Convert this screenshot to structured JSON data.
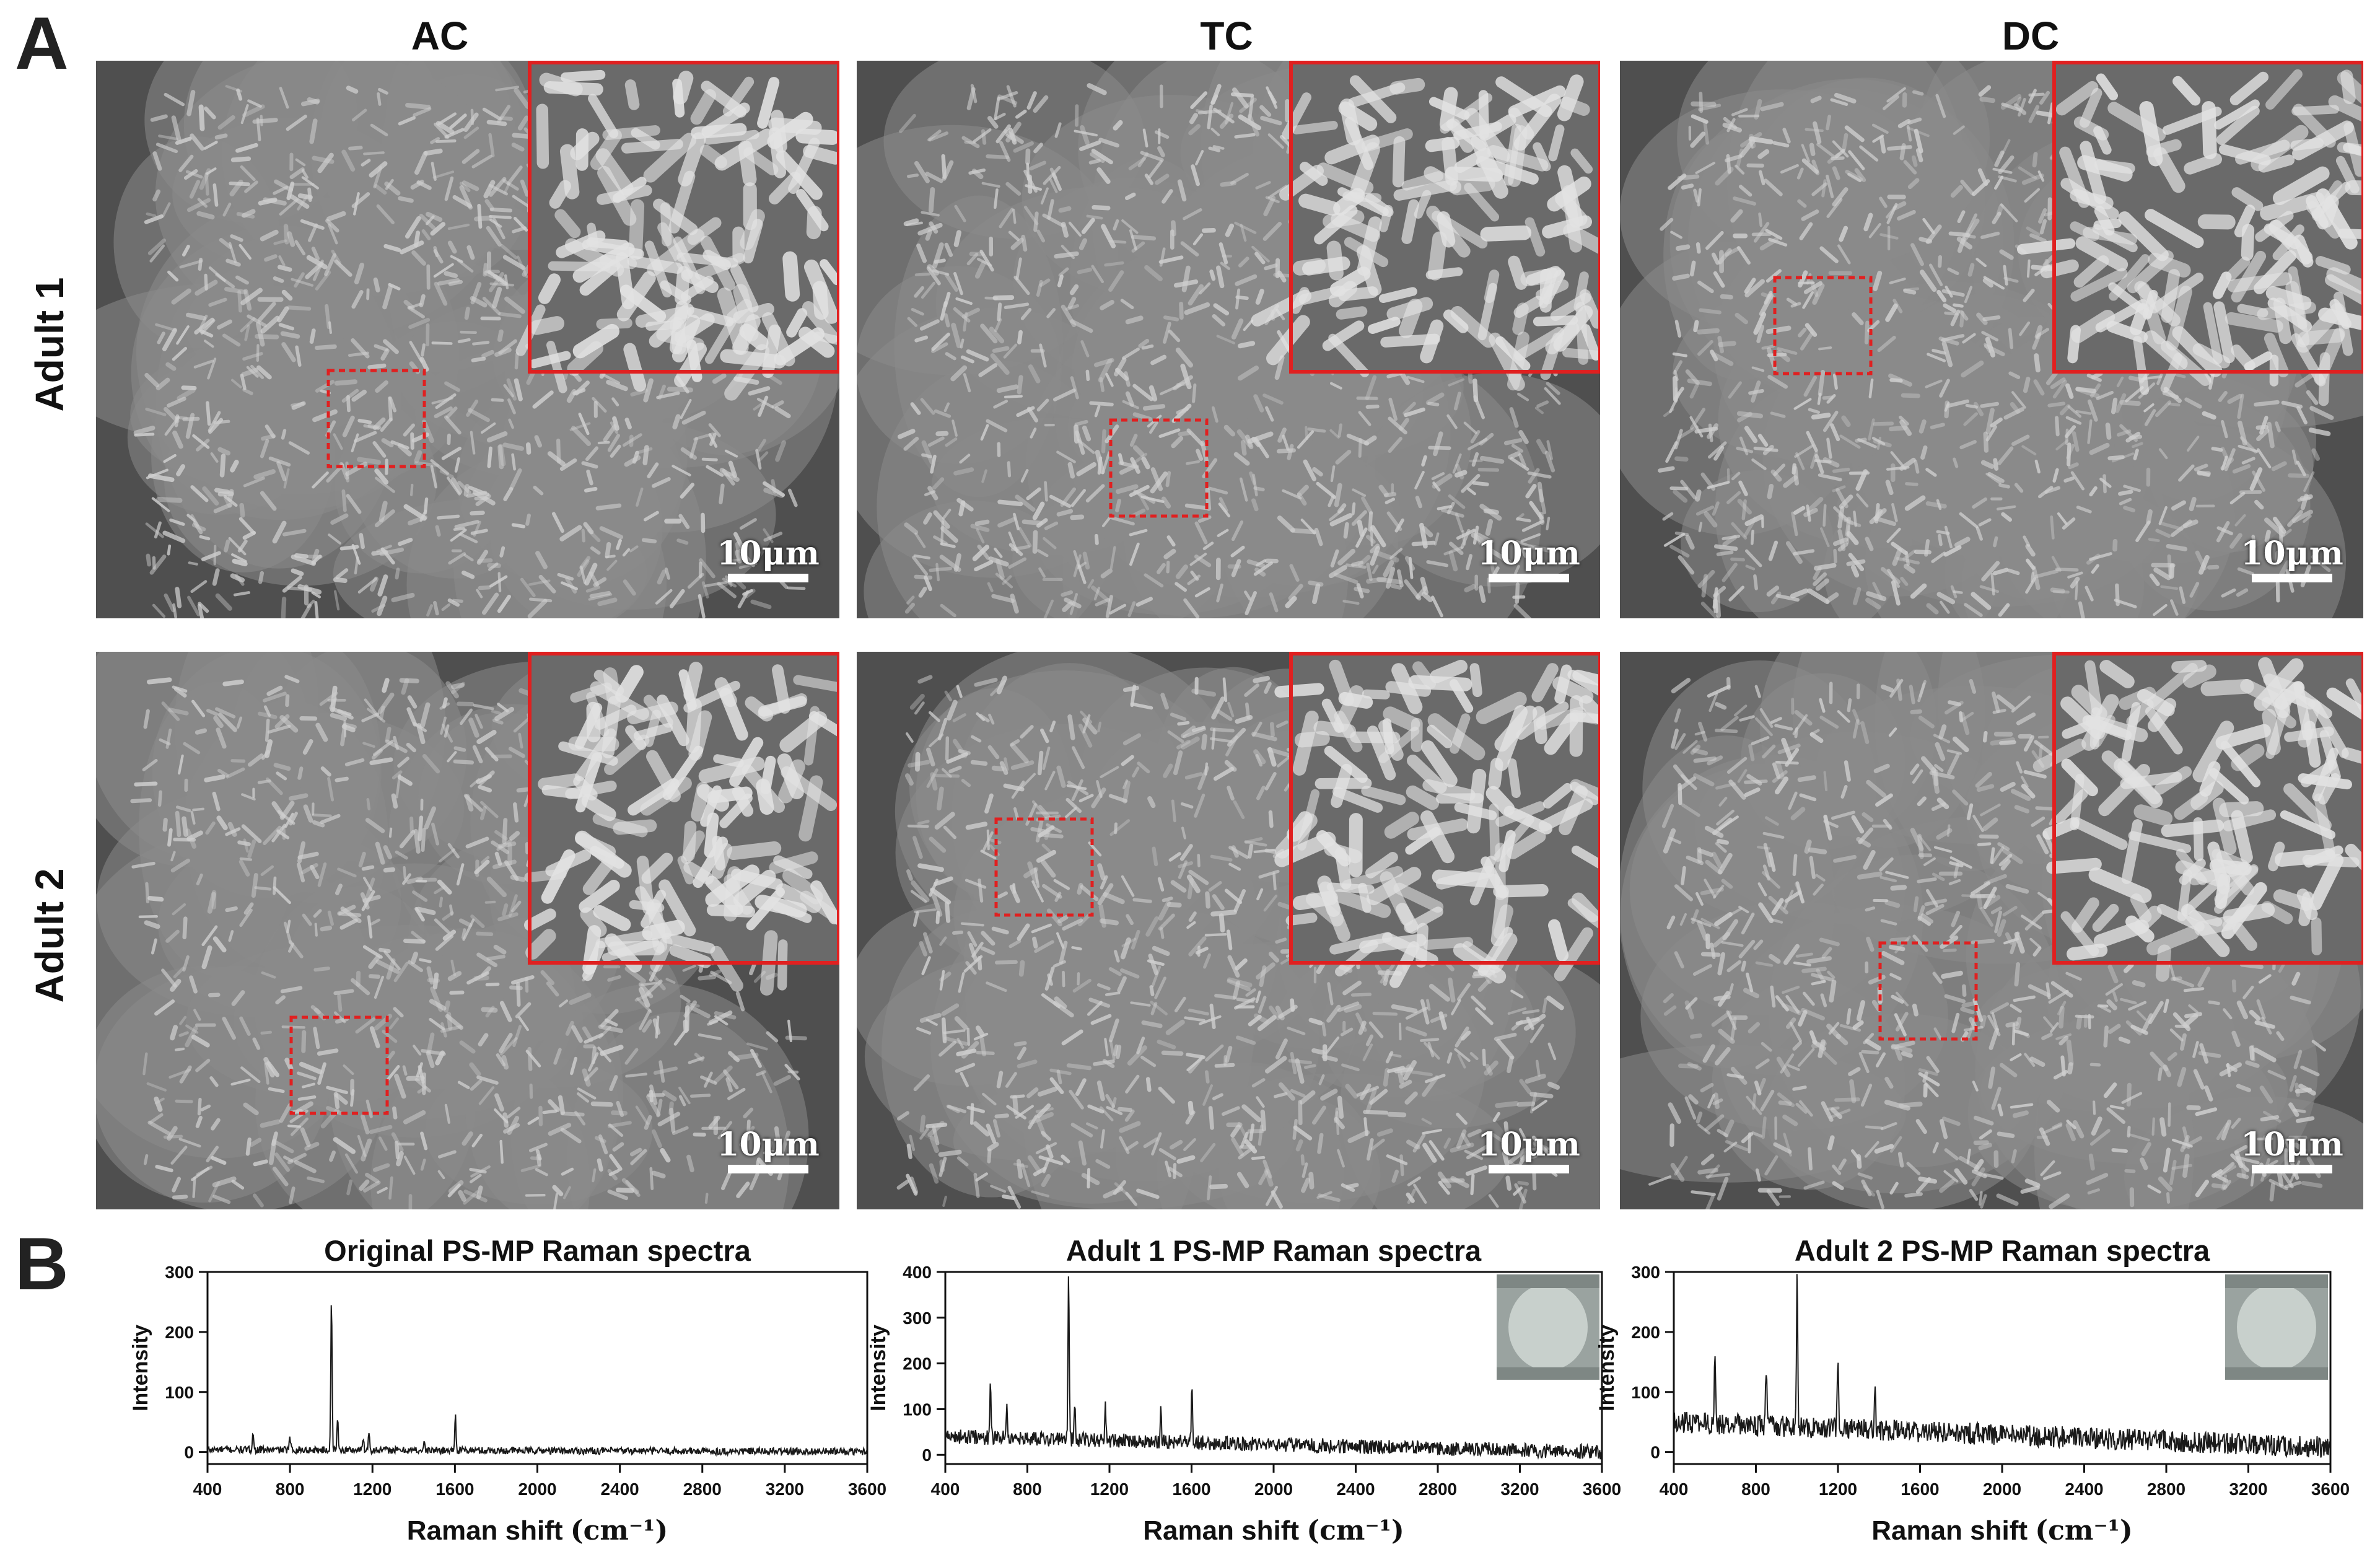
{
  "panel_letters": {
    "a": "A",
    "b": "B"
  },
  "sem_grid": {
    "columns": [
      "AC",
      "TC",
      "DC"
    ],
    "rows": [
      "Adult 1",
      "Adult 2"
    ],
    "scale_bar_label": "10μm",
    "colors": {
      "background": "#555555",
      "inset_border": "#e02020",
      "roi_box": "#e02020"
    }
  },
  "spectra": {
    "xlabel": "Raman shift",
    "xunit": "(cm⁻¹)",
    "ylabel": "Intensity"
  },
  "chart_data": [
    {
      "type": "line",
      "title": "Original PS-MP Raman spectra",
      "xlabel": "Raman shift (cm-1)",
      "ylabel": "Intensity",
      "xlim": [
        400,
        3600
      ],
      "ylim": [
        -20,
        300
      ],
      "xticks": [
        400,
        800,
        1200,
        1600,
        2000,
        2400,
        2800,
        3200,
        3600
      ],
      "yticks": [
        0,
        100,
        200,
        300
      ],
      "baseline": 4,
      "noise": 6,
      "peaks": [
        [
          620,
          30
        ],
        [
          800,
          20
        ],
        [
          1001,
          248
        ],
        [
          1031,
          52
        ],
        [
          1155,
          22
        ],
        [
          1183,
          32
        ],
        [
          1450,
          12
        ],
        [
          1602,
          58
        ]
      ],
      "has_inset": false
    },
    {
      "type": "line",
      "title": "Adult 1 PS-MP Raman spectra",
      "xlabel": "Raman shift (cm-1)",
      "ylabel": "Intensity",
      "xlim": [
        400,
        3600
      ],
      "ylim": [
        -20,
        400
      ],
      "xticks": [
        400,
        800,
        1200,
        1600,
        2000,
        2400,
        2800,
        3200,
        3600
      ],
      "yticks": [
        0,
        100,
        200,
        300,
        400
      ],
      "baseline": 40,
      "noise": 16,
      "peaks": [
        [
          620,
          110
        ],
        [
          700,
          75
        ],
        [
          1001,
          362
        ],
        [
          1031,
          90
        ],
        [
          1180,
          78
        ],
        [
          1450,
          70
        ],
        [
          1602,
          118
        ]
      ],
      "has_inset": true
    },
    {
      "type": "line",
      "title": "Adult 2  PS-MP Raman spectra",
      "xlabel": "Raman shift (cm-1)",
      "ylabel": "Intensity",
      "xlim": [
        400,
        3600
      ],
      "ylim": [
        -20,
        300
      ],
      "xticks": [
        400,
        800,
        1200,
        1600,
        2000,
        2400,
        2800,
        3200,
        3600
      ],
      "yticks": [
        0,
        100,
        200,
        300
      ],
      "baseline": 50,
      "noise": 18,
      "peaks": [
        [
          600,
          120
        ],
        [
          850,
          95
        ],
        [
          1001,
          255
        ],
        [
          1200,
          115
        ],
        [
          1380,
          85
        ]
      ],
      "has_inset": true
    }
  ]
}
